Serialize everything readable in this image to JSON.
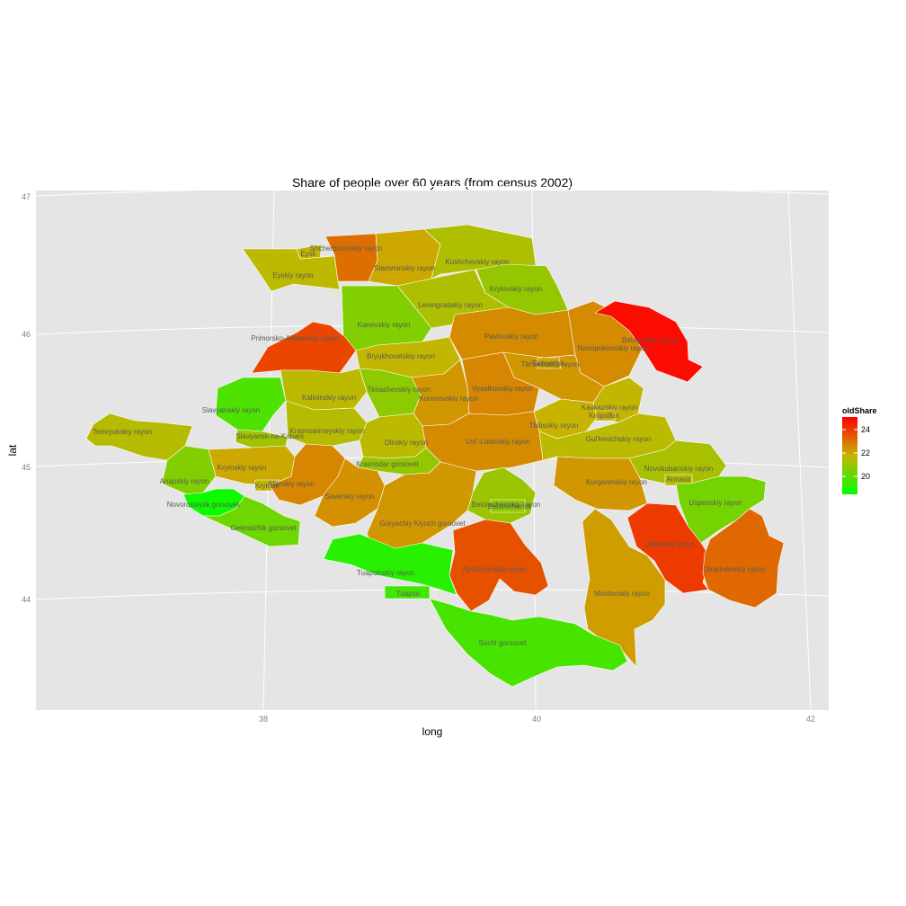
{
  "chart_data": {
    "type": "choropleth",
    "title": "Share of people over 60 years (from census 2002)",
    "xlabel": "long",
    "ylabel": "lat",
    "x_ticks": [
      "38",
      "40",
      "42"
    ],
    "y_ticks": [
      "44",
      "45",
      "46",
      "47"
    ],
    "xlim": [
      36.3,
      42.1
    ],
    "ylim": [
      43.15,
      47.05
    ],
    "legend": {
      "title": "oldShare",
      "ticks": [
        "20",
        "22",
        "24"
      ],
      "range": [
        19.0,
        25.2
      ],
      "colors": {
        "low": "#00ff00",
        "mid": "#c8b400",
        "high": "#ff0000"
      },
      "placement": "right"
    },
    "regions": [
      {
        "name": "Shcherbinovskiy rayon",
        "value": 23.3
      },
      {
        "name": "Eysk",
        "value": 22.0
      },
      {
        "name": "Eyskiy rayon",
        "value": 21.9
      },
      {
        "name": "Starominskiy rayon",
        "value": 22.3
      },
      {
        "name": "Kushchevskiy rayon",
        "value": 21.7
      },
      {
        "name": "Krylovskiy rayon",
        "value": 21.3
      },
      {
        "name": "Leningradskiy rayon",
        "value": 21.7
      },
      {
        "name": "Kanevskiy rayon",
        "value": 21.0
      },
      {
        "name": "Pavlovskiy rayon",
        "value": 22.8
      },
      {
        "name": "Novopokrovskiy rayon",
        "value": 22.8
      },
      {
        "name": "Belogorsky rayon",
        "value": 25.0
      },
      {
        "name": "Primorsko-Akhtarskiy rayon",
        "value": 24.0
      },
      {
        "name": "Bryukhovetskiy rayon",
        "value": 22.0
      },
      {
        "name": "Tikhoretskiy rayon",
        "value": 22.6
      },
      {
        "name": "Tikhoretsk",
        "value": 22.4
      },
      {
        "name": "Slavyanskiy rayon",
        "value": 20.2
      },
      {
        "name": "Kalininskiy rayon",
        "value": 21.9
      },
      {
        "name": "Timashevskiy rayon",
        "value": 21.2
      },
      {
        "name": "Korenovskiy rayon",
        "value": 22.6
      },
      {
        "name": "Vyselkovskiy rayon",
        "value": 22.9
      },
      {
        "name": "Kavkazskiy rayon",
        "value": 22.0
      },
      {
        "name": "Kropotkin",
        "value": 22.2
      },
      {
        "name": "Temryukskiy rayon",
        "value": 21.8
      },
      {
        "name": "Tbilisskiy rayon",
        "value": 22.1
      },
      {
        "name": "Krasnoarmeyskiy rayon",
        "value": 21.8
      },
      {
        "name": "Slavyansk-na-Kubani",
        "value": 21.5
      },
      {
        "name": "Dinskiy rayon",
        "value": 21.9
      },
      {
        "name": "Ust'-Labinskiy rayon",
        "value": 22.8
      },
      {
        "name": "Gul'kevichskiy rayon",
        "value": 21.9
      },
      {
        "name": "Krasnodar gorsovet",
        "value": 21.3
      },
      {
        "name": "Krymskiy rayon",
        "value": 22.3
      },
      {
        "name": "Anapskiy rayon",
        "value": 21.0
      },
      {
        "name": "Krymsk",
        "value": 22.0
      },
      {
        "name": "Abinskiy rayon",
        "value": 22.9
      },
      {
        "name": "Novokubanskiy rayon",
        "value": 21.6
      },
      {
        "name": "Armavir",
        "value": 21.8
      },
      {
        "name": "Kurganinskiy rayon",
        "value": 22.6
      },
      {
        "name": "Belorechenskiy rayon",
        "value": 21.4
      },
      {
        "name": "Belorechensk",
        "value": 21.2
      },
      {
        "name": "Seversky rayon",
        "value": 22.7
      },
      {
        "name": "Novorossiysk gorsovet",
        "value": 19.2
      },
      {
        "name": "Uspenskiy rayon",
        "value": 20.8
      },
      {
        "name": "Gelendzhik gorsovet",
        "value": 20.7
      },
      {
        "name": "Goryachiy Klyuch gorsovet",
        "value": 22.6
      },
      {
        "name": "Labinskiy rayon",
        "value": 24.2
      },
      {
        "name": "Apsheronskiy rayon",
        "value": 23.8
      },
      {
        "name": "Otradnenskiy rayon",
        "value": 23.4
      },
      {
        "name": "Tuapsinskiy rayon",
        "value": 19.6
      },
      {
        "name": "Tuapse",
        "value": 20.0
      },
      {
        "name": "Mostovskiy rayon",
        "value": 22.5
      },
      {
        "name": "Sochi gorsovet",
        "value": 20.1
      }
    ]
  }
}
